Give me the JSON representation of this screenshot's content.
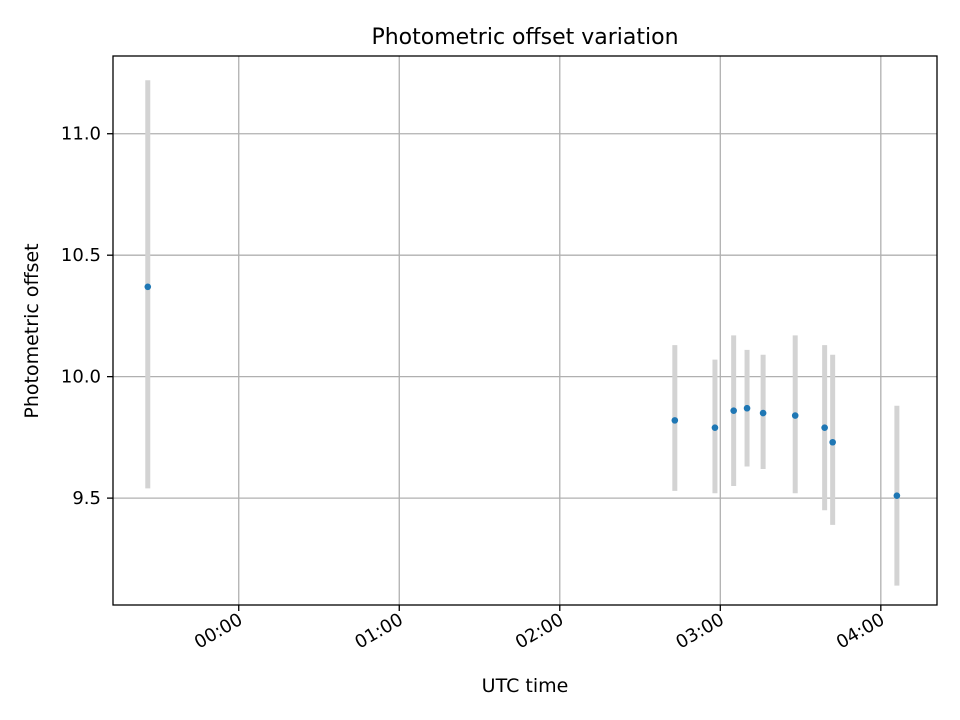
{
  "chart_data": {
    "type": "scatter",
    "title": "Photometric offset variation",
    "xlabel": "UTC time",
    "ylabel": "Photometric offset",
    "x_axis": {
      "kind": "time",
      "xlim": [
        "-00:47",
        "04:21"
      ],
      "ticks": [
        "00:00",
        "01:00",
        "02:00",
        "03:00",
        "04:00"
      ]
    },
    "y_axis": {
      "ylim": [
        9.06,
        11.32
      ],
      "ticks": [
        9.5,
        10.0,
        10.5,
        11.0
      ],
      "tick_labels": [
        "9.5",
        "10.0",
        "10.5",
        "11.0"
      ]
    },
    "grid": true,
    "legend": "none",
    "series": [
      {
        "marker_color": "#1f77b4",
        "errorbar_color": "#d3d3d3",
        "points": [
          {
            "x": "-00:34",
            "y": 10.37,
            "ylow": 9.54,
            "yhigh": 11.22
          },
          {
            "x": "02:43",
            "y": 9.82,
            "ylow": 9.53,
            "yhigh": 10.13
          },
          {
            "x": "02:58",
            "y": 9.79,
            "ylow": 9.52,
            "yhigh": 10.07
          },
          {
            "x": "03:05",
            "y": 9.86,
            "ylow": 9.55,
            "yhigh": 10.17
          },
          {
            "x": "03:10",
            "y": 9.87,
            "ylow": 9.63,
            "yhigh": 10.11
          },
          {
            "x": "03:16",
            "y": 9.85,
            "ylow": 9.62,
            "yhigh": 10.09
          },
          {
            "x": "03:28",
            "y": 9.84,
            "ylow": 9.52,
            "yhigh": 10.17
          },
          {
            "x": "03:39",
            "y": 9.79,
            "ylow": 9.45,
            "yhigh": 10.13
          },
          {
            "x": "03:42",
            "y": 9.73,
            "ylow": 9.39,
            "yhigh": 10.09
          },
          {
            "x": "04:06",
            "y": 9.51,
            "ylow": 9.14,
            "yhigh": 9.88
          }
        ]
      }
    ]
  }
}
